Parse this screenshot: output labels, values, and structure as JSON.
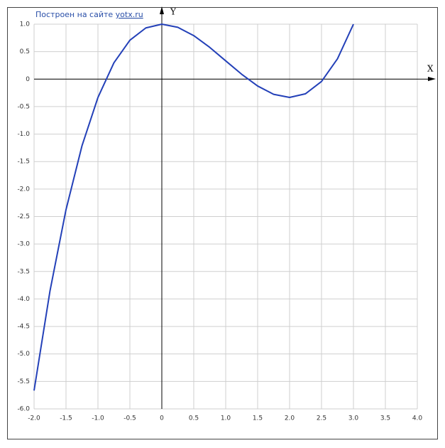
{
  "chart_data": {
    "type": "line",
    "credit_text": "Построен на сайте",
    "credit_link": "yotx.ru",
    "xlabel": "X",
    "ylabel": "Y",
    "x": [
      -2,
      -1.75,
      -1.5,
      -1.25,
      -1,
      -0.75,
      -0.5,
      -0.25,
      0,
      0.25,
      0.5,
      0.75,
      1,
      1.25,
      1.5,
      1.75,
      2,
      2.25,
      2.5,
      2.75,
      3
    ],
    "values": [
      -5.667,
      -3.849,
      -2.375,
      -1.214,
      -0.333,
      0.297,
      0.708,
      0.932,
      1,
      0.943,
      0.792,
      0.578,
      0.333,
      0.089,
      -0.125,
      -0.276,
      -0.333,
      -0.266,
      -0.042,
      0.37,
      1
    ],
    "color": "#2340b8",
    "xlim": [
      -2,
      4
    ],
    "ylim": [
      -6,
      1
    ],
    "xticks": [
      {
        "value": -2,
        "label": "-2.0"
      },
      -1.5,
      {
        "value": -1,
        "label": "-1.0"
      },
      -0.5,
      0,
      0.5,
      {
        "value": 1,
        "label": "1.0"
      },
      1.5,
      {
        "value": 2,
        "label": "2.0"
      },
      2.5,
      {
        "value": 3,
        "label": "3.0"
      },
      3.5,
      {
        "value": 4,
        "label": "4.0"
      }
    ],
    "yticks": [
      {
        "value": 1,
        "label": "1.0"
      },
      0.5,
      0,
      -0.5,
      {
        "value": -1,
        "label": "-1.0"
      },
      -1.5,
      {
        "value": -2,
        "label": "-2.0"
      },
      -2.5,
      {
        "value": -3,
        "label": "-3.0"
      },
      -3.5,
      {
        "value": -4,
        "label": "-4.0"
      },
      -4.5,
      {
        "value": -5,
        "label": "-5.0"
      },
      -5.5,
      {
        "value": -6,
        "label": "-6.0"
      }
    ],
    "grid": true
  }
}
